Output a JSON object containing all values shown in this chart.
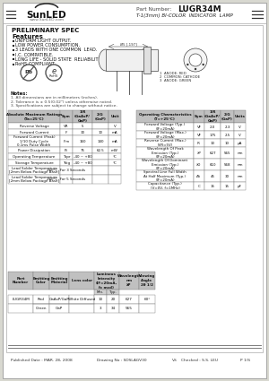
{
  "title_part_number": "LUGR34M",
  "title_desc": "T-1(3mm) BI-COLOR  INDICATOR  LAMP",
  "company": "SunLED",
  "website": "www.SunLED.com",
  "prelim_spec": "PRELIMINARY SPEC",
  "features": [
    "UNIFORM LIGHT OUTPUT.",
    "LOW POWER CONSUMPTION.",
    "3 LEADS WITH ONE COMMON  LEAD.",
    "I.C. COMPATIBLE.",
    "LONG LIFE - SOLID STATE  RELIABILITY.",
    "RoHS COMPLIANT."
  ],
  "notes": [
    "1. All dimensions are in millimeters (inches).",
    "2. Tolerance is ± 0.5(0.02\") unless otherwise noted.",
    "3. Specifications are subject to change without notice."
  ],
  "footer_published": "Published Date : MAR. 28, 2008",
  "footer_drawing": "Drawing No : SDSLAGV30",
  "footer_vs": "VS",
  "footer_checked": "Checked : S.S. LEU",
  "footer_page": "P 1/S",
  "abs_rows": [
    [
      "Reverse Voltage",
      "VR",
      "5",
      "",
      "V"
    ],
    [
      "Forward Current",
      "IF",
      "30",
      "10",
      "mA"
    ],
    [
      "Forward Current (Peak)\n1/10 Duty Cycle\n0.1ms Pulse Width",
      "IFm",
      "160",
      "140",
      "mA"
    ],
    [
      "Power Dissipation",
      "Pt",
      "75",
      "62.5",
      "mW"
    ],
    [
      "Operating Temperature",
      "Topr",
      "-40 ~ +80",
      "",
      "°C"
    ],
    [
      "Storage Temperature",
      "Tstg",
      "-40 ~ +80",
      "",
      "°C"
    ],
    [
      "Lead Solder Temperature\n[2mm Below Package Base]",
      "260°C  For 3 Seconds",
      "",
      "",
      ""
    ],
    [
      "Lead Solder Temperature\n[2mm Below Package Base]",
      "260°C  For 5 Seconds",
      "",
      "",
      ""
    ]
  ],
  "op_rows": [
    [
      "Forward Voltage (Typ.)\n(IF=20mA)",
      "VF",
      "2.0",
      "2.3",
      "V"
    ],
    [
      "Forward Voltage (Max.)\n(IF=20mA)",
      "VF",
      "175",
      "2.5",
      "V"
    ],
    [
      "Reverse Current (Max.)\n(VR=5V)",
      "IR",
      "10",
      "10",
      "µA"
    ],
    [
      "Wavelength Of Peak\nEmission (Typ.)\n(IF=20mA)",
      "λP",
      "627",
      "565",
      "nm"
    ],
    [
      "Wavelength Of Dominant\nEmission (Typ.)\n(IF=20mA)",
      "λD",
      "610",
      "568",
      "nm"
    ],
    [
      "Spectral Line Full Width\nAt Half Maximum (Typ.)\n(IF=20mA)",
      "Δλ",
      "45",
      "30",
      "nm"
    ],
    [
      "Capacitance (Typ.)\n(V=0V, f=1MHz)",
      "C",
      "15",
      "15",
      "pF"
    ]
  ],
  "bg_outer": "#d8d8d0",
  "bg_inner": "#ffffff",
  "hdr_bg": "#c0c0c0",
  "cell_bg": "#ffffff",
  "border": "#888888",
  "text_dark": "#111111",
  "text_mid": "#444444"
}
